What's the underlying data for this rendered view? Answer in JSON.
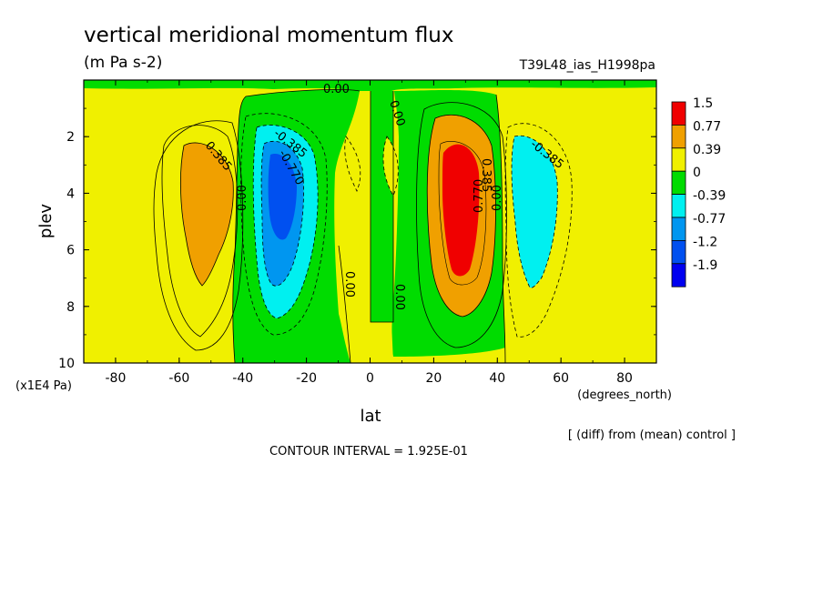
{
  "chart_data": {
    "type": "heatmap",
    "title": "vertical meridional momentum flux",
    "subtitle": "(m Pa s-2)",
    "run_label": "T39L48_ias_H1998pa",
    "xlabel": "lat",
    "xunits": "(degrees_north)",
    "ylabel": "plev",
    "yunits": "(x1E4 Pa)",
    "xlim": [
      -90,
      90
    ],
    "ylim": [
      10,
      0
    ],
    "x_ticks": [
      "-80",
      "-60",
      "-40",
      "-20",
      "0",
      "20",
      "40",
      "60",
      "80"
    ],
    "x_tick_values": [
      -80,
      -60,
      -40,
      -20,
      0,
      20,
      40,
      60,
      80
    ],
    "y_ticks": [
      "2",
      "4",
      "6",
      "8",
      "10"
    ],
    "y_tick_values": [
      2,
      4,
      6,
      8,
      10
    ],
    "colorbar": {
      "labels": [
        "1.5",
        "0.77",
        "0.39",
        "0",
        "-0.39",
        "-0.77",
        "-1.2",
        "-1.9"
      ],
      "colors": [
        "#f00000",
        "#f0a000",
        "#f0f000",
        "#00dc00",
        "#00f0f0",
        "#0096f0",
        "#0050f0",
        "#0000f0"
      ]
    },
    "contour_labels": [
      "-0.385",
      "-0.385",
      "-0.770",
      "0.00",
      "0.00",
      "0.00",
      "0.00",
      "0.00",
      "0.770",
      "0.385",
      "0.00",
      "-0.385",
      "0.385",
      "0.00"
    ],
    "features": [
      {
        "lat": -52,
        "plev": 4.2,
        "value": 0.5
      },
      {
        "lat": -29,
        "plev": 4.0,
        "value": -1.3
      },
      {
        "lat": 29,
        "plev": 4.6,
        "value": 1.0
      },
      {
        "lat": 50,
        "plev": 4.6,
        "value": -0.6
      }
    ],
    "contour_interval": "CONTOUR INTERVAL = 1.925E-01",
    "footnote": "[ (diff) from (mean) control ]"
  }
}
